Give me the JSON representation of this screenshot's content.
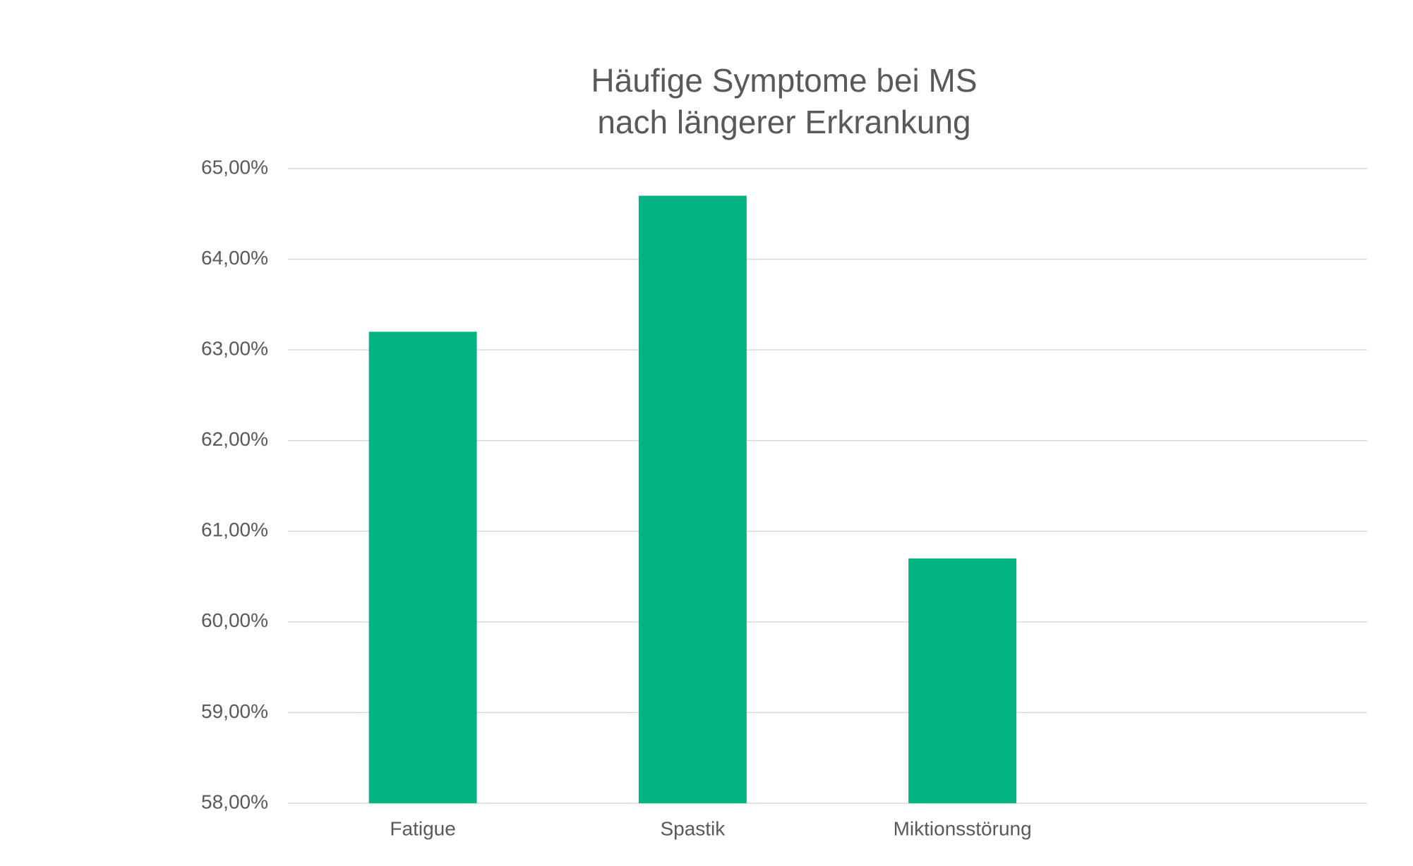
{
  "chart_data": {
    "type": "bar",
    "title": [
      "Häufige Symptome bei MS",
      "nach längerer Erkrankung"
    ],
    "categories": [
      "Fatigue",
      "Spastik",
      "Miktionsstörung",
      null
    ],
    "values": [
      63.2,
      64.7,
      60.7,
      null
    ],
    "color": "#02b383",
    "ylim": [
      58,
      65
    ],
    "yticks": [
      {
        "value": 58,
        "label": "58,00%"
      },
      {
        "value": 59,
        "label": "59,00%"
      },
      {
        "value": 60,
        "label": "60,00%"
      },
      {
        "value": 61,
        "label": "61,00%"
      },
      {
        "value": 62,
        "label": "62,00%"
      },
      {
        "value": 63,
        "label": "63,00%"
      },
      {
        "value": 64,
        "label": "64,00%"
      },
      {
        "value": 65,
        "label": "65,00%"
      }
    ],
    "grid": true
  }
}
